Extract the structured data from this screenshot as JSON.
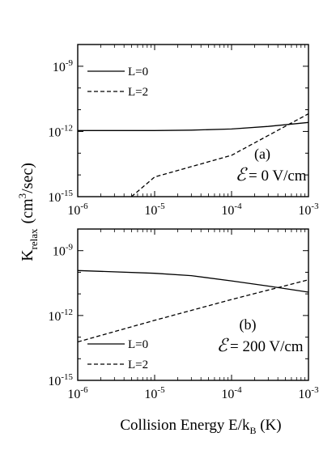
{
  "chart_data": [
    {
      "type": "line",
      "xscale": "log",
      "yscale": "log",
      "xlim": [
        1e-06,
        0.001
      ],
      "ylim": [
        1e-15,
        1e-08
      ],
      "xticks": [
        "10-6",
        "10-5",
        "10-4",
        "10-3"
      ],
      "yticks": [
        "10-9",
        "10-12",
        "10-15"
      ],
      "panel_label": "(a)",
      "field": {
        "symbol": "ℰ",
        "text": "= 0 V/cm"
      },
      "legend_position": "top-left",
      "series": [
        {
          "name": "L=0",
          "style": "solid",
          "x": [
            1e-06,
            1e-05,
            3e-05,
            0.0001,
            0.0003,
            0.001
          ],
          "y": [
            1.1e-12,
            1.1e-12,
            1.15e-12,
            1.3e-12,
            1.7e-12,
            2.6e-12
          ]
        },
        {
          "name": "L=2",
          "style": "dashed",
          "x": [
            5e-06,
            1e-05,
            0.0001,
            0.001
          ],
          "y": [
            1e-15,
            8e-15,
            8e-14,
            6.5e-12
          ]
        }
      ]
    },
    {
      "type": "line",
      "xscale": "log",
      "yscale": "log",
      "xlim": [
        1e-06,
        0.001
      ],
      "ylim": [
        1e-15,
        1e-08
      ],
      "xticks": [
        "10-6",
        "10-5",
        "10-4",
        "10-3"
      ],
      "yticks": [
        "10-9",
        "10-12",
        "10-15"
      ],
      "panel_label": "(b)",
      "field": {
        "symbol": "ℰ",
        "text": "= 200 V/cm"
      },
      "legend_position": "bottom-left",
      "series": [
        {
          "name": "L=0",
          "style": "solid",
          "x": [
            1e-06,
            1e-05,
            3e-05,
            0.0001,
            0.0003,
            0.001
          ],
          "y": [
            1.2e-10,
            9e-11,
            7e-11,
            4e-11,
            2.3e-11,
            1.2e-11
          ]
        },
        {
          "name": "L=2",
          "style": "dashed",
          "x": [
            1e-06,
            1e-05,
            0.0001,
            0.001
          ],
          "y": [
            6e-14,
            6e-13,
            5.5e-12,
            4.5e-11
          ]
        }
      ]
    }
  ],
  "ylabel": {
    "base": "K",
    "sub": "relax",
    "unit_pre": "(cm",
    "sup": "3",
    "unit_post": "/sec)"
  },
  "xlabel": {
    "text": "Collision Energy E/k",
    "sub": "B",
    "unit": " (K)"
  }
}
